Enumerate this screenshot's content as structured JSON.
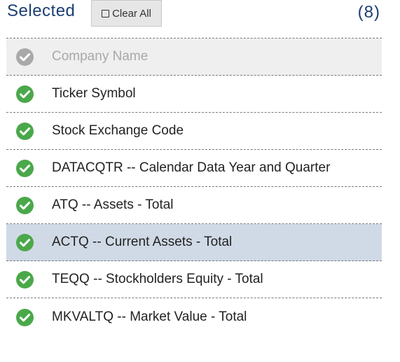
{
  "header": {
    "title": "Selected",
    "clear_label": "Clear All",
    "count": "(8)"
  },
  "colors": {
    "title": "#1c3f73",
    "check_active": "#4aa84a",
    "check_disabled": "#a9a9a9",
    "highlight_row": "#d0dae6",
    "disabled_row": "#efefef"
  },
  "items": [
    {
      "label": "Company Name",
      "state": "disabled",
      "icon": "check-circle-icon"
    },
    {
      "label": "Ticker Symbol",
      "state": "selected",
      "icon": "check-circle-icon"
    },
    {
      "label": "Stock Exchange Code",
      "state": "selected",
      "icon": "check-circle-icon"
    },
    {
      "label": "DATACQTR -- Calendar Data Year and Quarter",
      "state": "selected",
      "icon": "check-circle-icon"
    },
    {
      "label": "ATQ -- Assets - Total",
      "state": "selected",
      "icon": "check-circle-icon"
    },
    {
      "label": "ACTQ -- Current Assets - Total",
      "state": "highlighted",
      "icon": "check-circle-icon"
    },
    {
      "label": "TEQQ -- Stockholders Equity - Total",
      "state": "selected",
      "icon": "check-circle-icon"
    },
    {
      "label": "MKVALTQ -- Market Value - Total",
      "state": "selected",
      "icon": "check-circle-icon"
    }
  ]
}
